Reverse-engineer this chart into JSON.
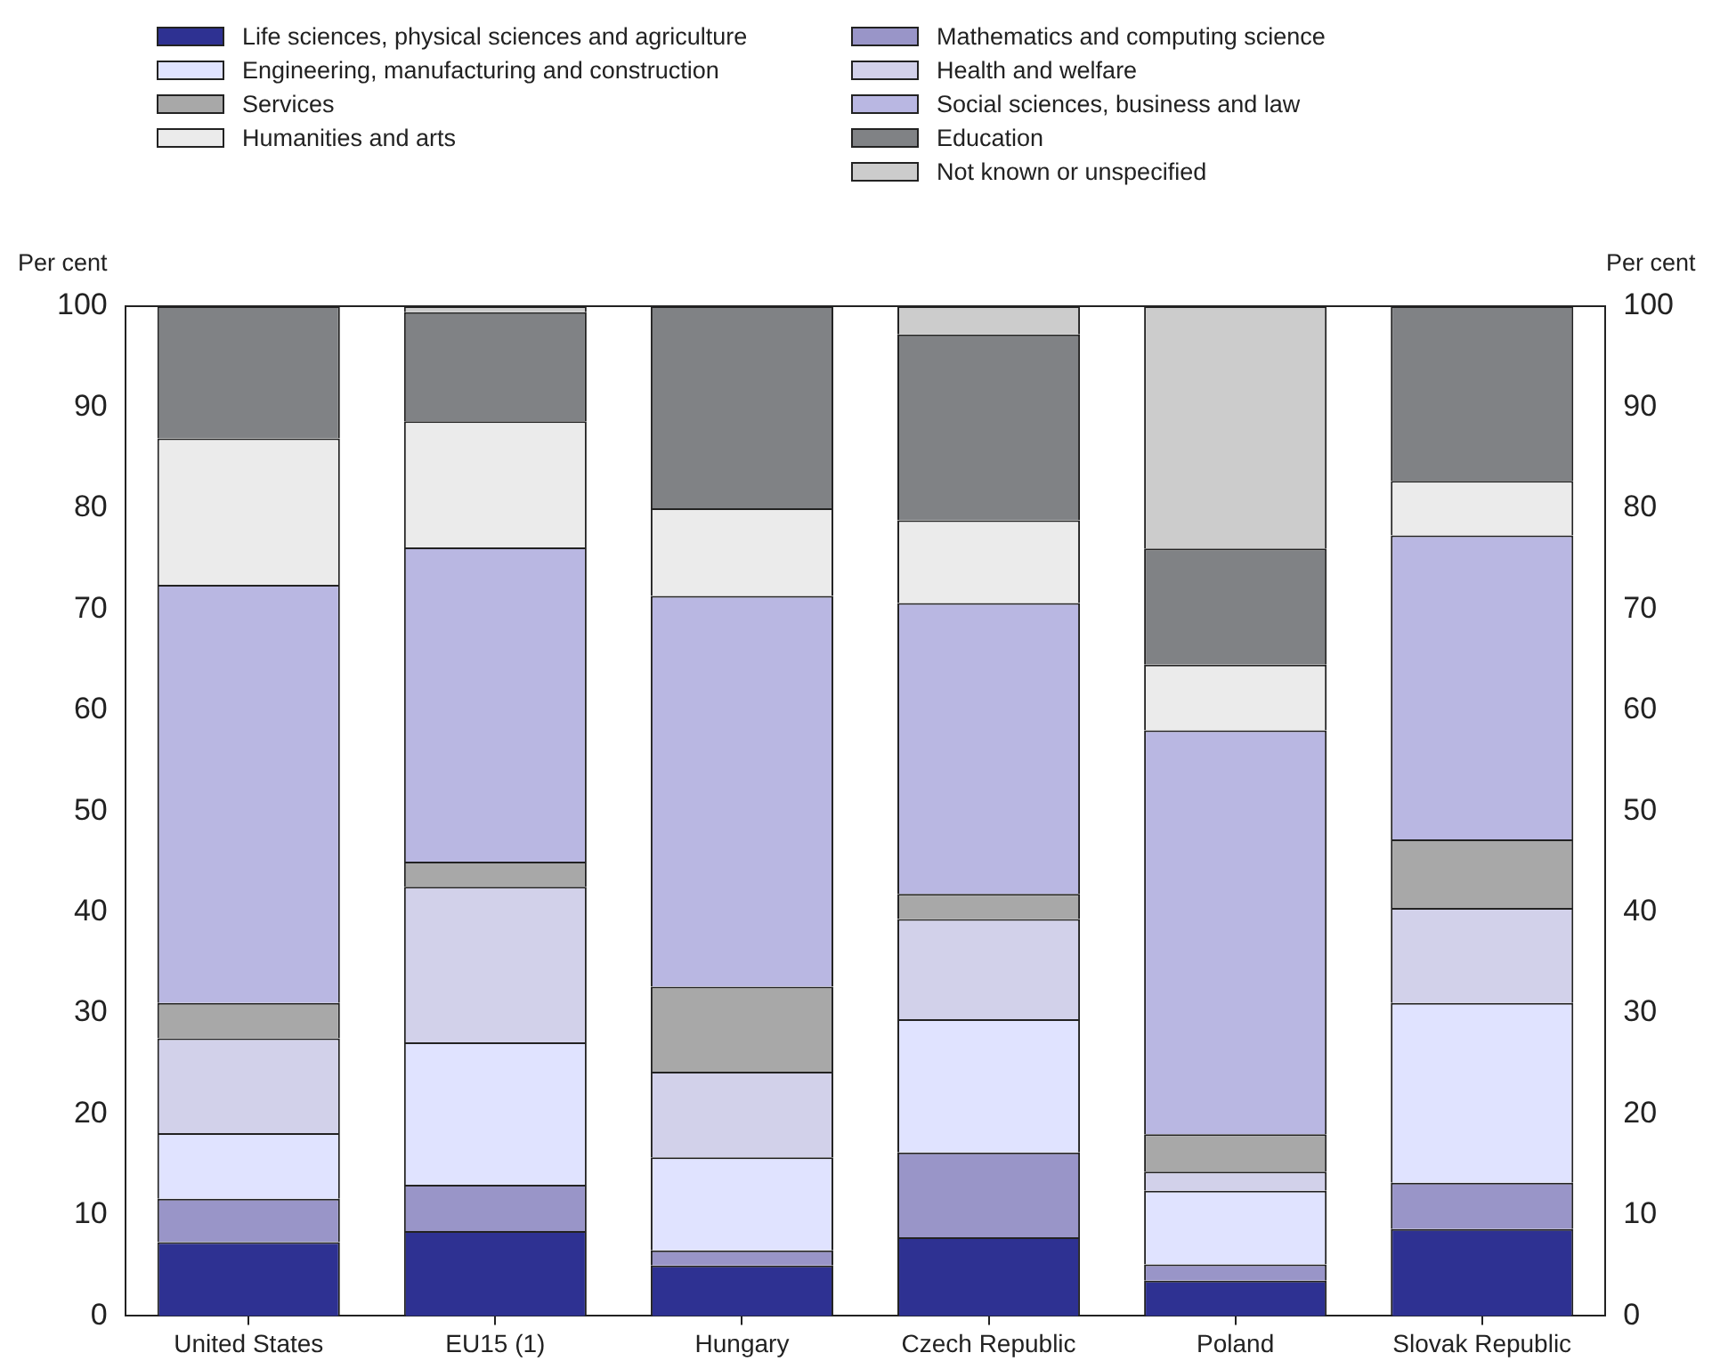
{
  "chart_data": {
    "type": "bar",
    "stacked": true,
    "ylabel": "Per cent",
    "y2label": "Per cent",
    "legend": "top",
    "grid": false,
    "categories": [
      "United States",
      "EU15 (1)",
      "Hungary",
      "Czech Republic",
      "Poland",
      "Slovak Republic"
    ],
    "ylim": [
      0,
      100
    ],
    "yticks": [
      0,
      10,
      20,
      30,
      40,
      50,
      60,
      70,
      80,
      90,
      100
    ],
    "y2lim": [
      0,
      100
    ],
    "y2ticks": [
      0,
      10,
      20,
      30,
      40,
      50,
      60,
      70,
      80,
      90,
      100
    ],
    "series": [
      {
        "name": "Life sciences, physical sciences and agriculture",
        "color": "#2e3192",
        "values": [
          7.3,
          8.4,
          5.0,
          7.8,
          3.5,
          8.6
        ]
      },
      {
        "name": "Mathematics and computing science",
        "color": "#9995c8",
        "values": [
          4.3,
          4.6,
          1.5,
          8.4,
          1.6,
          4.6
        ]
      },
      {
        "name": "Engineering, manufacturing and construction",
        "color": "#e0e3ff",
        "values": [
          6.5,
          14.1,
          9.2,
          13.2,
          7.3,
          17.8
        ]
      },
      {
        "name": "Health and welfare",
        "color": "#d2d1ea",
        "values": [
          9.4,
          15.4,
          8.5,
          9.9,
          1.9,
          9.4
        ]
      },
      {
        "name": "Services",
        "color": "#a8a8a8",
        "values": [
          3.5,
          2.5,
          8.4,
          2.5,
          3.7,
          6.8
        ]
      },
      {
        "name": "Social sciences, business and law",
        "color": "#b9b7e2",
        "values": [
          41.4,
          31.1,
          38.7,
          28.8,
          40.0,
          30.1
        ]
      },
      {
        "name": "Humanities and arts",
        "color": "#ebebeb",
        "values": [
          14.5,
          12.5,
          8.7,
          8.2,
          6.5,
          5.4
        ]
      },
      {
        "name": "Education",
        "color": "#808285",
        "values": [
          13.1,
          10.8,
          20.0,
          18.4,
          11.5,
          17.3
        ]
      },
      {
        "name": "Not known or unspecified",
        "color": "#cccccc",
        "values": [
          0,
          0.6,
          0,
          2.8,
          24.0,
          0
        ]
      }
    ]
  }
}
